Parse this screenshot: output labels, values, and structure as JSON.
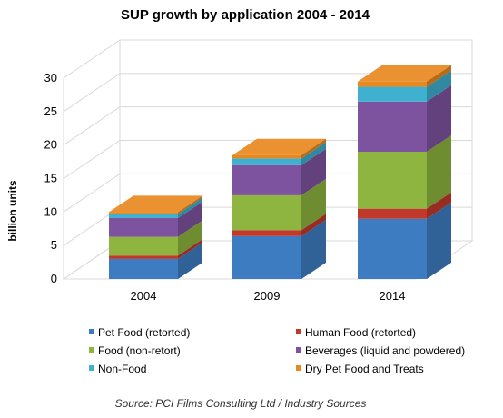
{
  "chart_data": {
    "type": "bar",
    "stacked": true,
    "three_d": true,
    "title": "SUP growth by application 2004 - 2014",
    "ylabel": "billion units",
    "xlabel": "",
    "ylim": [
      0,
      30
    ],
    "yticks": [
      "0",
      "5",
      "10",
      "15",
      "20",
      "25",
      "30"
    ],
    "grid": true,
    "legend_position": "bottom",
    "categories": [
      "2004",
      "2009",
      "2014"
    ],
    "series": [
      {
        "name": "Pet Food (retorted)",
        "color": "#3d7cc1",
        "values": [
          3.0,
          6.4,
          9.0
        ]
      },
      {
        "name": "Human Food (retorted)",
        "color": "#c0392b",
        "values": [
          0.5,
          0.9,
          1.5
        ]
      },
      {
        "name": "Food (non-retort)",
        "color": "#8db53f",
        "values": [
          2.8,
          5.2,
          8.5
        ]
      },
      {
        "name": "Beverages (liquid and powdered)",
        "color": "#7d53a0",
        "values": [
          2.8,
          4.5,
          7.5
        ]
      },
      {
        "name": "Non-Food",
        "color": "#3fb0cf",
        "values": [
          0.6,
          1.0,
          2.2
        ]
      },
      {
        "name": "Dry Pet Food and Treats",
        "color": "#e8891f",
        "values": [
          0.3,
          0.5,
          0.8
        ]
      }
    ]
  },
  "source_note": "Source: PCI Films Consulting  Ltd / Industry Sources"
}
